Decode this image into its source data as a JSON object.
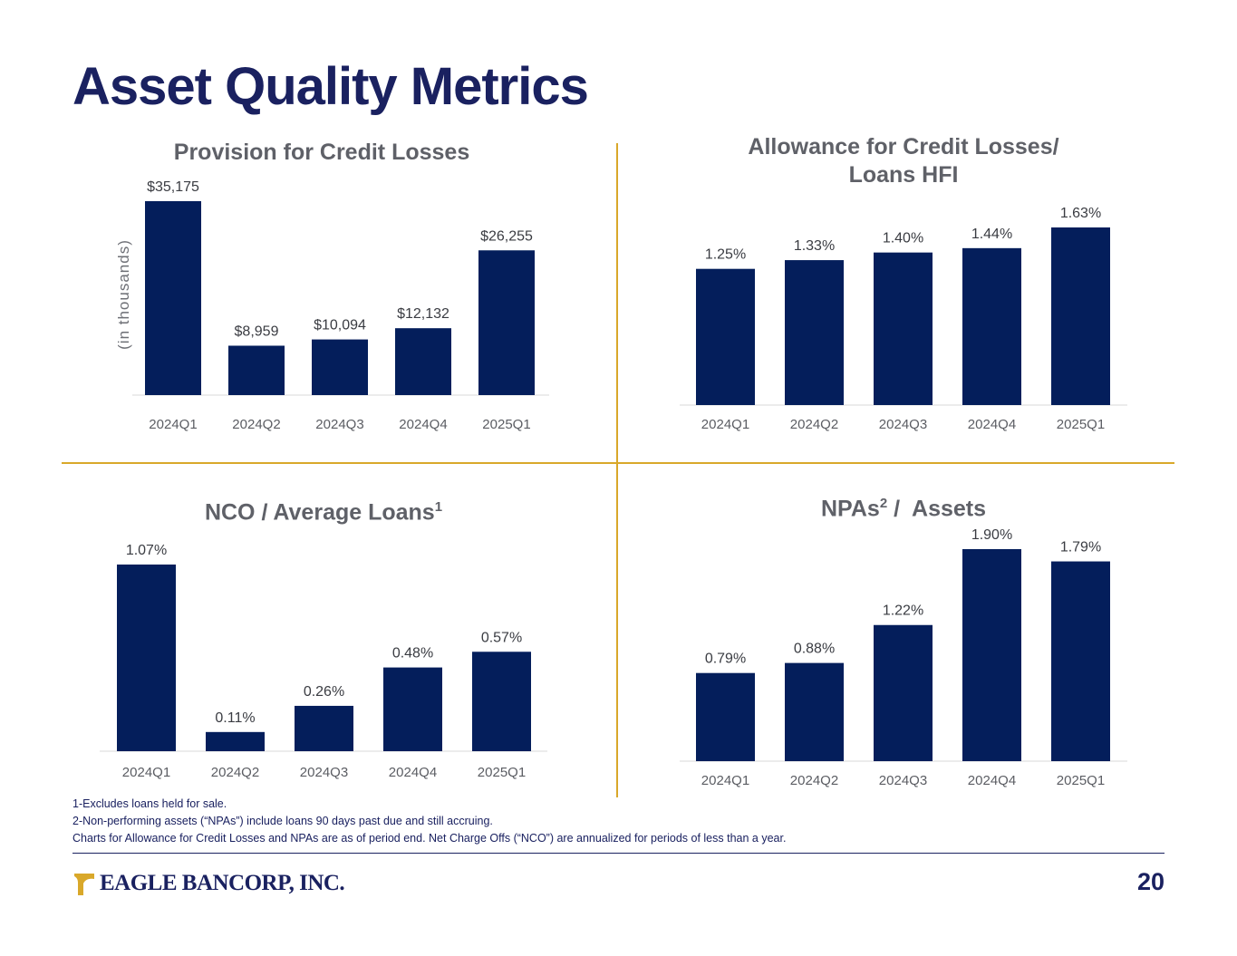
{
  "page": {
    "title": "Asset Quality Metrics",
    "page_number": "20",
    "logo_text": "EAGLE BANCORP, INC.",
    "footnotes": [
      "1-Excludes loans held for sale.",
      "2-Non-performing assets (“NPAs”) include loans 90 days past due and still accruing.",
      "Charts for Allowance for Credit Losses and NPAs are as of period end. Net Charge Offs (“NCO”) are annualized for periods of less than a year."
    ],
    "colors": {
      "bar": "#041e5b",
      "title": "#1a2160",
      "divider": "#d9a82a"
    }
  },
  "chart_data": [
    {
      "type": "bar",
      "title": "Provision for Credit Losses",
      "ylabel": "(in thousands)",
      "categories": [
        "2024Q1",
        "2024Q2",
        "2024Q3",
        "2024Q4",
        "2025Q1"
      ],
      "values": [
        35175,
        8959,
        10094,
        12132,
        26255
      ],
      "labels": [
        "$35,175",
        "$8,959",
        "$10,094",
        "$12,132",
        "$26,255"
      ],
      "ylim": [
        0,
        35175
      ]
    },
    {
      "type": "bar",
      "title_lines": [
        "Allowance for Credit Losses/",
        "Loans HFI"
      ],
      "categories": [
        "2024Q1",
        "2024Q2",
        "2024Q3",
        "2024Q4",
        "2025Q1"
      ],
      "values": [
        1.25,
        1.33,
        1.4,
        1.44,
        1.63
      ],
      "labels": [
        "1.25%",
        "1.33%",
        "1.40%",
        "1.44%",
        "1.63%"
      ],
      "ylim": [
        0,
        1.63
      ]
    },
    {
      "type": "bar",
      "title": "NCO / Average Loans",
      "title_sup": "1",
      "categories": [
        "2024Q1",
        "2024Q2",
        "2024Q3",
        "2024Q4",
        "2025Q1"
      ],
      "values": [
        1.07,
        0.11,
        0.26,
        0.48,
        0.57
      ],
      "labels": [
        "1.07%",
        "0.11%",
        "0.26%",
        "0.48%",
        "0.57%"
      ],
      "ylim": [
        0,
        1.07
      ]
    },
    {
      "type": "bar",
      "title_pre": "NPAs",
      "title_sup": "2",
      "title_post": " /  Assets",
      "categories": [
        "2024Q1",
        "2024Q2",
        "2024Q3",
        "2024Q4",
        "2025Q1"
      ],
      "values": [
        0.79,
        0.88,
        1.22,
        1.9,
        1.79
      ],
      "labels": [
        "0.79%",
        "0.88%",
        "1.22%",
        "1.90%",
        "1.79%"
      ],
      "ylim": [
        0,
        1.9
      ]
    }
  ]
}
